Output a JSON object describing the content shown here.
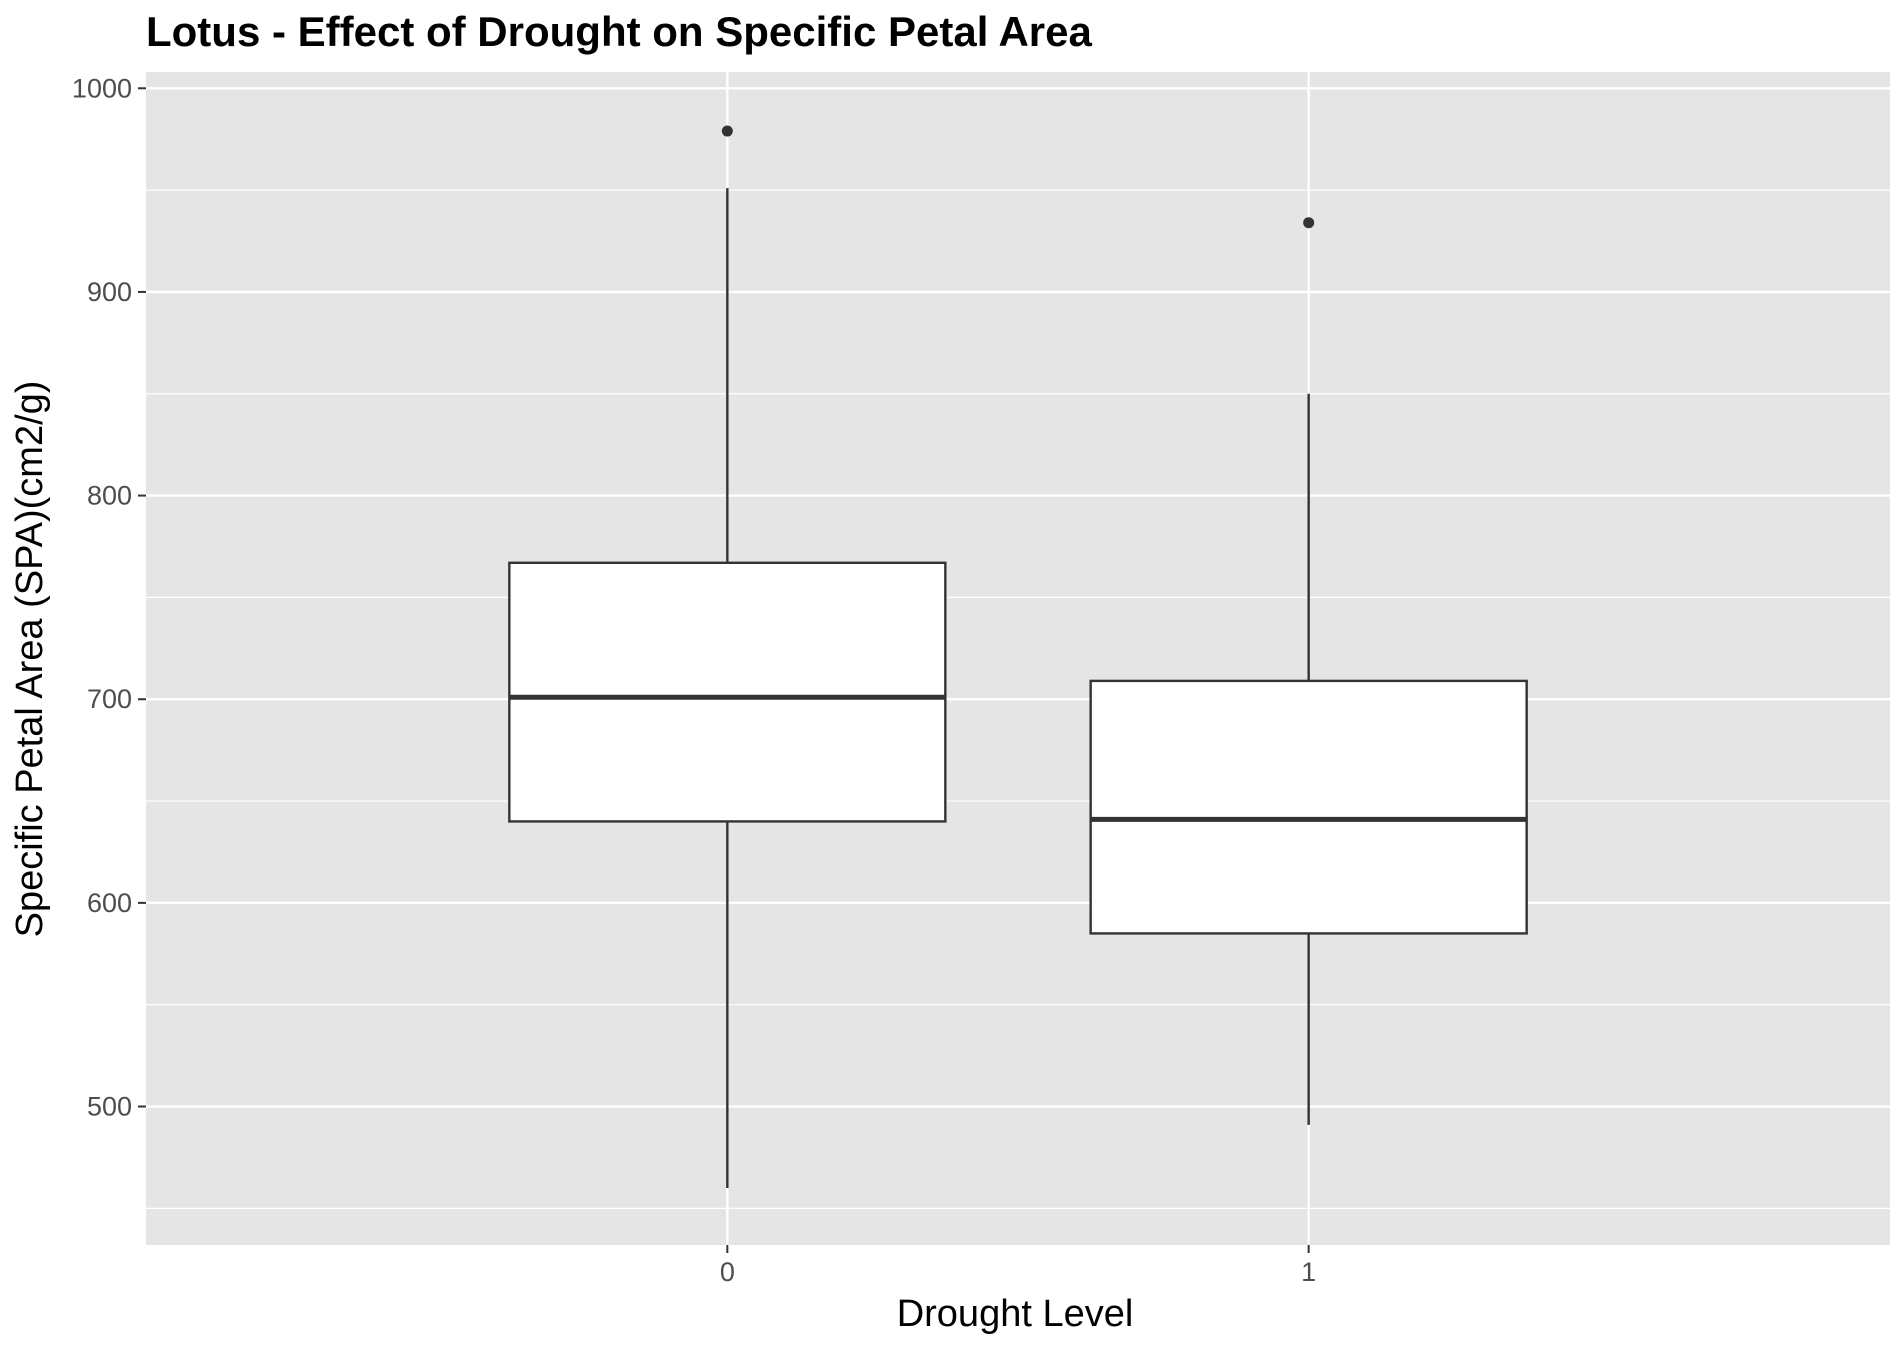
{
  "chart_data": {
    "type": "box",
    "title": "Lotus - Effect of Drought on Specific Petal Area",
    "xlabel": "Drought Level",
    "ylabel": "Specific Petal Area (SPA)(cm2/g)",
    "categories": [
      "0",
      "1"
    ],
    "ylim": [
      432,
      1008
    ],
    "yticks": [
      500,
      600,
      700,
      800,
      900,
      1000
    ],
    "grid": true,
    "colors": {
      "panel_background": "#e5e5e5",
      "grid": "#ffffff",
      "box_fill": "#ffffff",
      "box_stroke": "#333333",
      "outlier": "#333333",
      "tick_label": "#4d4d4d",
      "tick_mark": "#333333"
    },
    "boxes": [
      {
        "category": "0",
        "lower_whisker": 460,
        "q1": 640,
        "median": 701,
        "q3": 767,
        "upper_whisker": 951,
        "outliers": [
          979
        ]
      },
      {
        "category": "1",
        "lower_whisker": 491,
        "q1": 585,
        "median": 641,
        "q3": 709,
        "upper_whisker": 850,
        "outliers": [
          934
        ]
      }
    ]
  }
}
